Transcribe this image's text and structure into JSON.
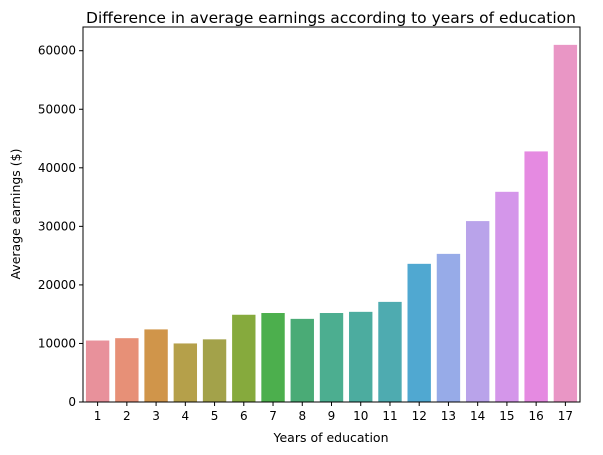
{
  "chart_data": {
    "type": "bar",
    "title": "Difference in average earnings according to years of education",
    "xlabel": "Years of education",
    "ylabel": "Average earnings ($)",
    "categories": [
      "1",
      "2",
      "3",
      "4",
      "5",
      "6",
      "7",
      "8",
      "9",
      "10",
      "11",
      "12",
      "13",
      "14",
      "15",
      "16",
      "17"
    ],
    "values": [
      10500,
      10900,
      12400,
      10000,
      10700,
      14900,
      15200,
      14200,
      15200,
      15400,
      17100,
      23600,
      25300,
      30900,
      35900,
      42800,
      61000
    ],
    "colors": [
      "#e8919b",
      "#e79077",
      "#d0954a",
      "#b5a04a",
      "#a3a24a",
      "#86aa3d",
      "#4caf4d",
      "#4aab76",
      "#4cae90",
      "#4cac9f",
      "#4eabb0",
      "#50a8d1",
      "#97abe8",
      "#b9a3ea",
      "#d496ea",
      "#e58ae1",
      "#e996c5"
    ],
    "yticks": [
      0,
      10000,
      20000,
      30000,
      40000,
      50000,
      60000
    ],
    "ylim": [
      0,
      64050
    ],
    "grid": false
  }
}
